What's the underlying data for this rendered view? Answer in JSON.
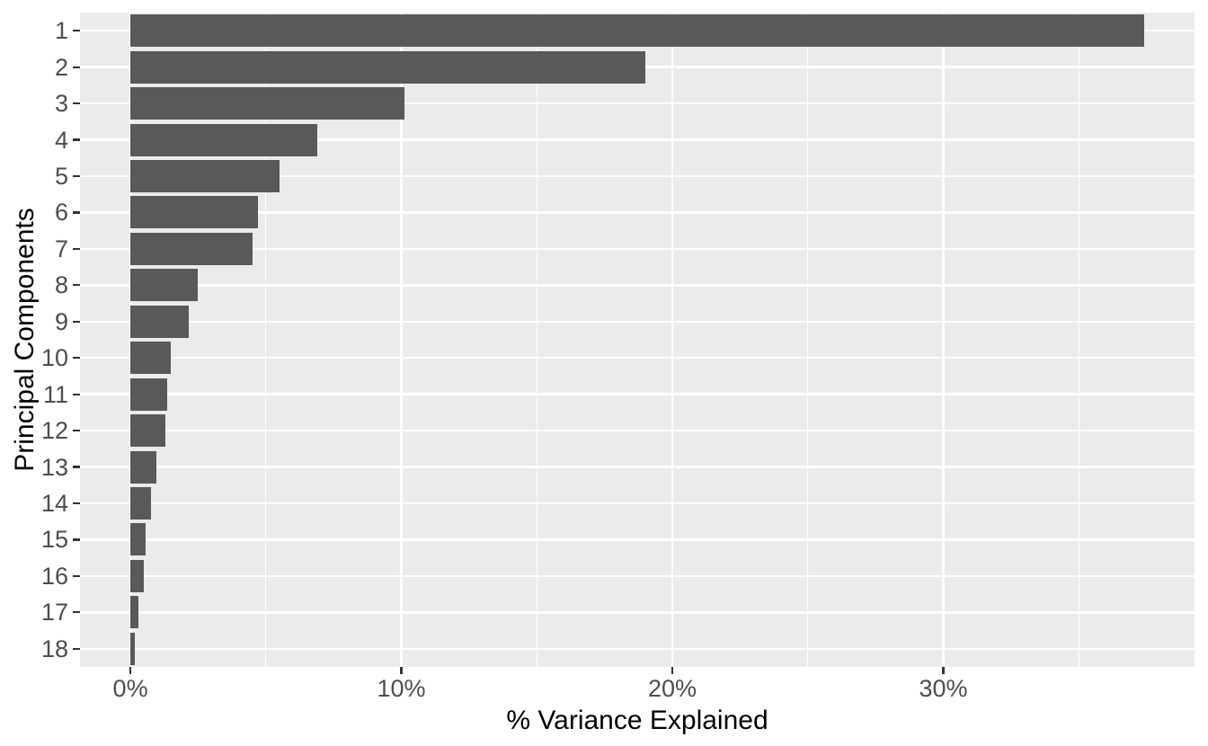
{
  "chart_data": {
    "type": "bar",
    "orientation": "horizontal",
    "title": "",
    "xlabel": "% Variance Explained",
    "ylabel": "Principal Components",
    "categories": [
      "1",
      "2",
      "3",
      "4",
      "5",
      "6",
      "7",
      "8",
      "9",
      "10",
      "11",
      "12",
      "13",
      "14",
      "15",
      "16",
      "17",
      "18"
    ],
    "values": [
      37.4,
      19.0,
      10.1,
      6.9,
      5.5,
      4.7,
      4.5,
      2.5,
      2.15,
      1.5,
      1.35,
      1.3,
      0.95,
      0.75,
      0.55,
      0.5,
      0.3,
      0.15
    ],
    "value_unit": "%",
    "xlim": [
      -1.86,
      39.27
    ],
    "x_major_ticks": {
      "labels": [
        "0%",
        "10%",
        "20%",
        "30%"
      ],
      "values": [
        0,
        10,
        20,
        30
      ]
    },
    "x_minor_gridlines": [
      5,
      15,
      25,
      35
    ],
    "grid": "major-and-minor",
    "legend": "none",
    "colors": {
      "bar_fill": "#595959",
      "panel_background": "#EBEBEB",
      "gridline": "#FFFFFF",
      "axis_text": "#4D4D4D",
      "tick_mark": "#333333",
      "axis_title": "#000000",
      "figure_background": "#FFFFFF"
    }
  }
}
